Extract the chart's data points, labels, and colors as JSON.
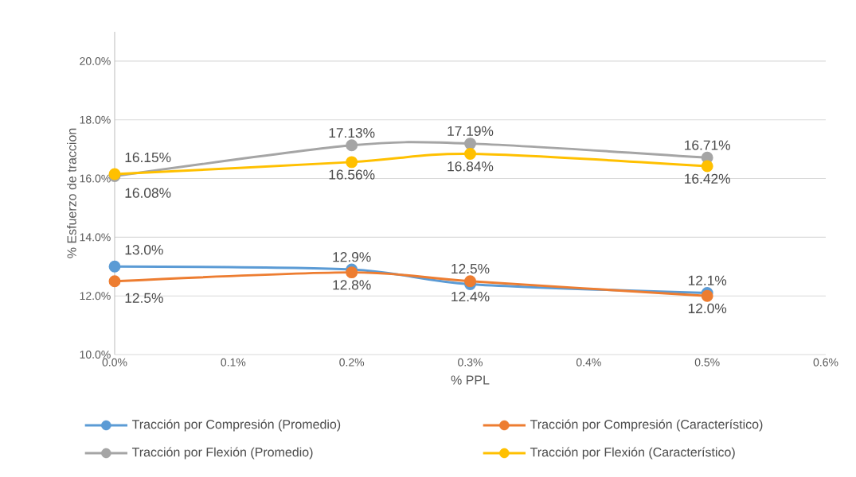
{
  "chart_data": {
    "type": "line",
    "xlabel": "% PPL",
    "ylabel": "% Esfuerzo de traccion",
    "x": [
      0.0,
      0.2,
      0.3,
      0.5
    ],
    "series": [
      {
        "name": "Tracción por Compresión (Promedio)",
        "color": "#5b9bd5",
        "values": [
          13.0,
          12.9,
          12.4,
          12.1
        ],
        "value_labels": [
          "13.0%",
          "12.9%",
          "12.4%",
          "12.1%"
        ]
      },
      {
        "name": "Tracción por Compresión (Característico)",
        "color": "#ed7d31",
        "values": [
          12.5,
          12.8,
          12.5,
          12.0
        ],
        "value_labels": [
          "12.5%",
          "12.8%",
          "12.5%",
          "12.0%"
        ]
      },
      {
        "name": "Tracción por Flexión (Promedio)",
        "color": "#a5a5a5",
        "values": [
          16.08,
          17.13,
          17.19,
          16.71
        ],
        "value_labels": [
          "16.08%",
          "17.13%",
          "17.19%",
          "16.71%"
        ]
      },
      {
        "name": "Tracción por Flexión (Característico)",
        "color": "#ffc000",
        "values": [
          16.15,
          16.56,
          16.84,
          16.42
        ],
        "value_labels": [
          "16.15%",
          "16.56%",
          "16.84%",
          "16.42%"
        ]
      }
    ],
    "xlim": [
      0,
      0.6
    ],
    "xticks": [
      {
        "value": 0,
        "label": "0.0%"
      },
      {
        "value": 0.1,
        "label": "0.1%"
      },
      {
        "value": 0.2,
        "label": "0.2%"
      },
      {
        "value": 0.3,
        "label": "0.3%"
      },
      {
        "value": 0.4,
        "label": "0.4%"
      },
      {
        "value": 0.5,
        "label": "0.5%"
      },
      {
        "value": 0.6,
        "label": "0.6%"
      }
    ],
    "ylim": [
      10,
      21
    ],
    "yticks": [
      {
        "value": 10,
        "label": "10.0%"
      },
      {
        "value": 12,
        "label": "12.0%"
      },
      {
        "value": 14,
        "label": "14.0%"
      },
      {
        "value": 16,
        "label": "16.0%"
      },
      {
        "value": 18,
        "label": "18.0%"
      },
      {
        "value": 20,
        "label": "20.0%"
      }
    ],
    "grid": "y",
    "legend": "bottom",
    "marker": "circle",
    "line_style": "solid"
  }
}
